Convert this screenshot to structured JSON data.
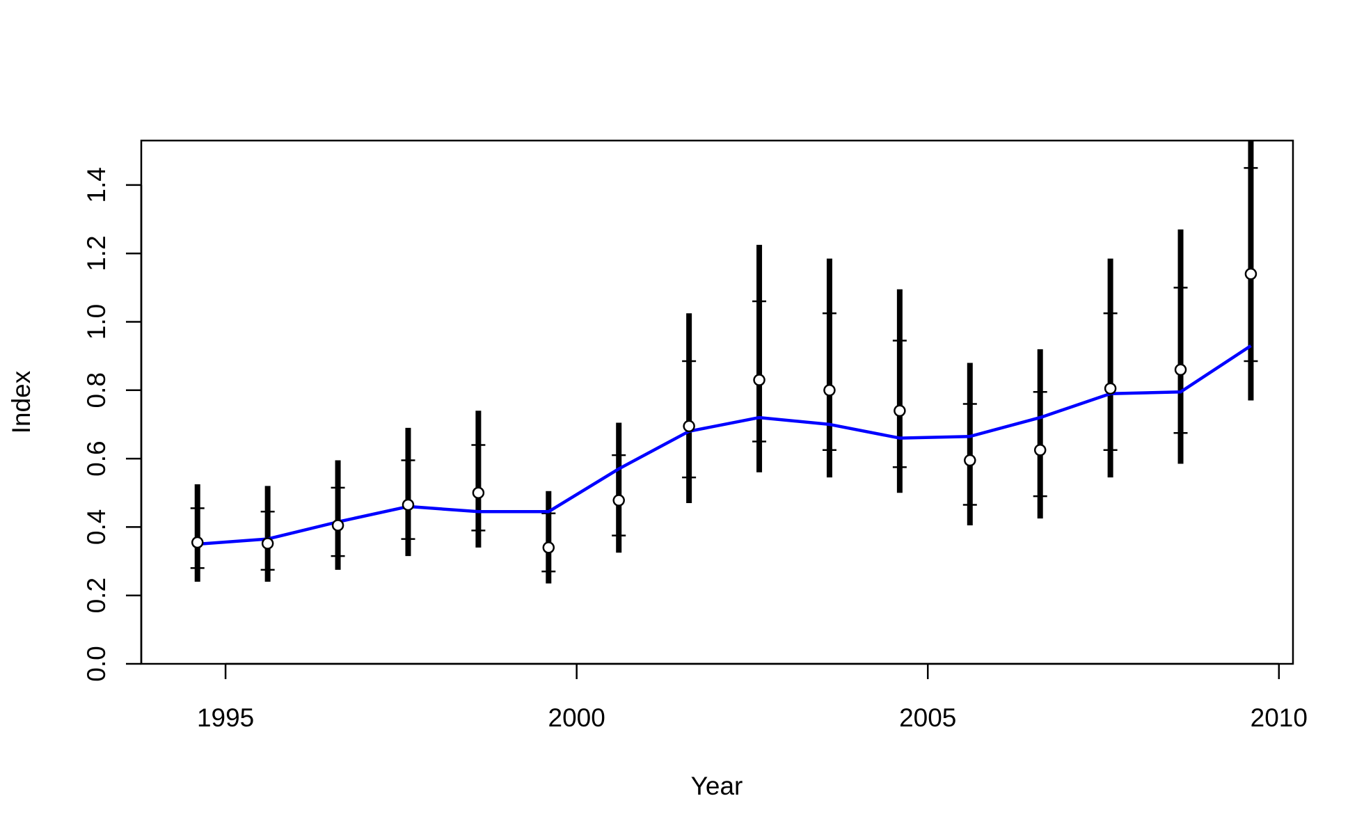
{
  "chart_data": {
    "type": "line",
    "title": "",
    "xlabel": "Year",
    "ylabel": "Index",
    "xlim": [
      1993.8,
      2010.2
    ],
    "ylim": [
      0.0,
      1.53
    ],
    "xticks": [
      1995,
      2000,
      2005,
      2010
    ],
    "xtick_labels": [
      "1995",
      "2000",
      "2005",
      "2010"
    ],
    "yticks": [
      0.0,
      0.2,
      0.4,
      0.6,
      0.8,
      1.0,
      1.2,
      1.4
    ],
    "ytick_labels": [
      "0.0",
      "0.2",
      "0.4",
      "0.6",
      "0.8",
      "1.0",
      "1.2",
      "1.4"
    ],
    "grid": false,
    "colors": {
      "fit_line": "#0000ff",
      "error_bars": "#000000",
      "points_fill": "#ffffff",
      "points_stroke": "#000000"
    },
    "x": [
      1994.6,
      1995.6,
      1996.6,
      1997.6,
      1998.6,
      1999.6,
      2000.6,
      2001.6,
      2002.6,
      2003.6,
      2004.6,
      2005.6,
      2006.6,
      2007.6,
      2008.6,
      2009.6
    ],
    "series": [
      {
        "kind": "observed",
        "marker": "open-circle",
        "values": [
          0.355,
          0.352,
          0.405,
          0.465,
          0.5,
          0.34,
          0.478,
          0.695,
          0.83,
          0.8,
          0.74,
          0.595,
          0.625,
          0.805,
          0.86,
          1.14
        ]
      },
      {
        "kind": "fitted",
        "values": [
          0.35,
          0.365,
          0.415,
          0.46,
          0.445,
          0.445,
          0.57,
          0.68,
          0.72,
          0.7,
          0.66,
          0.665,
          0.72,
          0.79,
          0.795,
          0.93
        ]
      }
    ],
    "error_bars": {
      "outer_lower": [
        0.24,
        0.24,
        0.275,
        0.315,
        0.34,
        0.235,
        0.325,
        0.47,
        0.56,
        0.545,
        0.5,
        0.405,
        0.425,
        0.545,
        0.585,
        0.77
      ],
      "outer_upper": [
        0.525,
        0.52,
        0.595,
        0.69,
        0.74,
        0.505,
        0.705,
        1.025,
        1.225,
        1.185,
        1.095,
        0.88,
        0.92,
        1.185,
        1.27,
        1.53
      ],
      "inner_lower": [
        0.28,
        0.275,
        0.315,
        0.365,
        0.39,
        0.27,
        0.375,
        0.545,
        0.65,
        0.625,
        0.575,
        0.465,
        0.49,
        0.625,
        0.675,
        0.885
      ],
      "inner_upper": [
        0.455,
        0.445,
        0.515,
        0.595,
        0.64,
        0.44,
        0.61,
        0.885,
        1.06,
        1.025,
        0.945,
        0.76,
        0.795,
        1.025,
        1.1,
        1.45
      ]
    }
  }
}
